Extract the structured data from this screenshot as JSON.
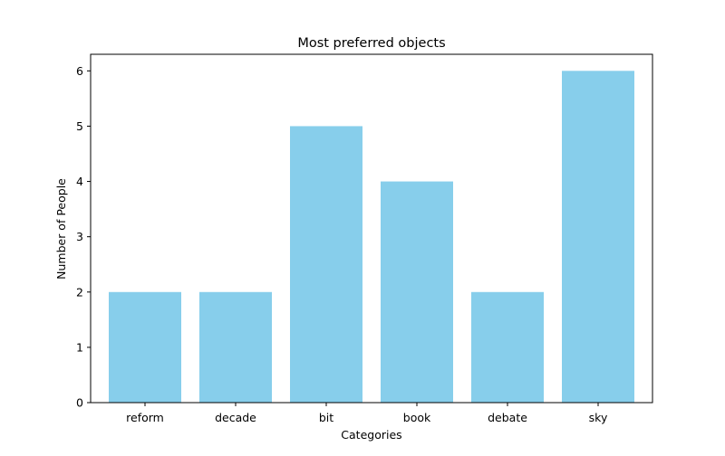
{
  "chart_data": {
    "type": "bar",
    "title": "Most preferred objects",
    "xlabel": "Categories",
    "ylabel": "Number of People",
    "categories": [
      "reform",
      "decade",
      "bit",
      "book",
      "debate",
      "sky"
    ],
    "values": [
      2,
      2,
      5,
      4,
      2,
      6
    ],
    "ylim": [
      0,
      6.3
    ],
    "yticks": [
      "0",
      "1",
      "2",
      "3",
      "4",
      "5",
      "6"
    ],
    "bar_color": "#87ceeb",
    "grid": false,
    "legend": "none"
  }
}
